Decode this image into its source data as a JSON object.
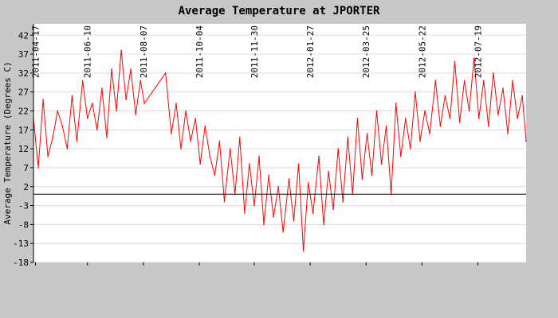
{
  "chart_data": {
    "type": "line",
    "title": "Average Temperature at JPORTER",
    "xlabel": "",
    "ylabel": "Average Temperature (Degrees C)",
    "yticks": [
      42,
      37,
      32,
      27,
      22,
      17,
      12,
      7,
      2,
      -3,
      -8,
      -13,
      -18
    ],
    "ylim": [
      -18,
      45
    ],
    "xlim": [
      "2011-04-15",
      "2012-09-07"
    ],
    "xticks": [
      "2011-04-17",
      "2011-06-10",
      "2011-08-07",
      "2011-10-04",
      "2011-11-30",
      "2012-01-27",
      "2012-03-25",
      "2012-05-22",
      "2012-07-19"
    ],
    "zero_line": 0,
    "grid": "horizontal",
    "series": [
      {
        "color": "#ff0000",
        "points": [
          [
            "2011-04-15",
            20
          ],
          [
            "2011-04-20",
            7
          ],
          [
            "2011-04-25",
            25
          ],
          [
            "2011-04-30",
            10
          ],
          [
            "2011-05-05",
            15
          ],
          [
            "2011-05-10",
            22
          ],
          [
            "2011-05-15",
            18
          ],
          [
            "2011-05-20",
            12
          ],
          [
            "2011-05-25",
            26
          ],
          [
            "2011-05-30",
            14
          ],
          [
            "2011-06-05",
            30
          ],
          [
            "2011-06-10",
            20
          ],
          [
            "2011-06-15",
            24
          ],
          [
            "2011-06-20",
            17
          ],
          [
            "2011-06-25",
            28
          ],
          [
            "2011-06-30",
            15
          ],
          [
            "2011-07-05",
            33
          ],
          [
            "2011-07-10",
            22
          ],
          [
            "2011-07-15",
            38
          ],
          [
            "2011-07-20",
            25
          ],
          [
            "2011-07-25",
            33
          ],
          [
            "2011-07-30",
            21
          ],
          [
            "2011-08-04",
            30
          ],
          [
            "2011-08-08",
            24
          ],
          [
            "2011-08-30",
            32
          ],
          [
            "2011-09-05",
            16
          ],
          [
            "2011-09-10",
            24
          ],
          [
            "2011-09-15",
            12
          ],
          [
            "2011-09-20",
            22
          ],
          [
            "2011-09-25",
            14
          ],
          [
            "2011-09-30",
            20
          ],
          [
            "2011-10-05",
            8
          ],
          [
            "2011-10-10",
            18
          ],
          [
            "2011-10-15",
            10
          ],
          [
            "2011-10-20",
            5
          ],
          [
            "2011-10-25",
            14
          ],
          [
            "2011-10-30",
            -2
          ],
          [
            "2011-11-05",
            12
          ],
          [
            "2011-11-10",
            0
          ],
          [
            "2011-11-15",
            15
          ],
          [
            "2011-11-20",
            -5
          ],
          [
            "2011-11-25",
            8
          ],
          [
            "2011-11-30",
            -3
          ],
          [
            "2011-12-05",
            10
          ],
          [
            "2011-12-10",
            -8
          ],
          [
            "2011-12-15",
            5
          ],
          [
            "2011-12-20",
            -6
          ],
          [
            "2011-12-25",
            2
          ],
          [
            "2011-12-30",
            -10
          ],
          [
            "2012-01-05",
            4
          ],
          [
            "2012-01-10",
            -7
          ],
          [
            "2012-01-15",
            8
          ],
          [
            "2012-01-20",
            -15
          ],
          [
            "2012-01-25",
            3
          ],
          [
            "2012-01-30",
            -5
          ],
          [
            "2012-02-05",
            10
          ],
          [
            "2012-02-10",
            -8
          ],
          [
            "2012-02-15",
            6
          ],
          [
            "2012-02-20",
            -4
          ],
          [
            "2012-02-25",
            12
          ],
          [
            "2012-03-01",
            -2
          ],
          [
            "2012-03-06",
            15
          ],
          [
            "2012-03-11",
            0
          ],
          [
            "2012-03-16",
            20
          ],
          [
            "2012-03-21",
            4
          ],
          [
            "2012-03-26",
            16
          ],
          [
            "2012-03-31",
            5
          ],
          [
            "2012-04-05",
            22
          ],
          [
            "2012-04-10",
            8
          ],
          [
            "2012-04-15",
            18
          ],
          [
            "2012-04-20",
            0
          ],
          [
            "2012-04-25",
            24
          ],
          [
            "2012-04-30",
            10
          ],
          [
            "2012-05-05",
            20
          ],
          [
            "2012-05-10",
            12
          ],
          [
            "2012-05-15",
            27
          ],
          [
            "2012-05-20",
            14
          ],
          [
            "2012-05-25",
            22
          ],
          [
            "2012-05-30",
            16
          ],
          [
            "2012-06-05",
            30
          ],
          [
            "2012-06-10",
            18
          ],
          [
            "2012-06-15",
            26
          ],
          [
            "2012-06-20",
            20
          ],
          [
            "2012-06-25",
            35
          ],
          [
            "2012-06-30",
            19
          ],
          [
            "2012-07-05",
            30
          ],
          [
            "2012-07-10",
            22
          ],
          [
            "2012-07-15",
            36
          ],
          [
            "2012-07-20",
            20
          ],
          [
            "2012-07-25",
            30
          ],
          [
            "2012-07-30",
            18
          ],
          [
            "2012-08-04",
            32
          ],
          [
            "2012-08-09",
            21
          ],
          [
            "2012-08-14",
            28
          ],
          [
            "2012-08-19",
            16
          ],
          [
            "2012-08-24",
            30
          ],
          [
            "2012-08-29",
            20
          ],
          [
            "2012-09-03",
            26
          ],
          [
            "2012-09-07",
            14
          ]
        ]
      }
    ]
  }
}
